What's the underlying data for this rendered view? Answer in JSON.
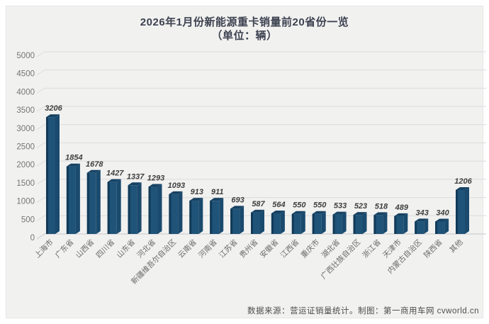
{
  "title": {
    "line1": "2026年1月份新能源重卡销量前20省份一览",
    "line2": "（单位：辆）"
  },
  "footer": {
    "source": "数据来源：营运证销量统计。制图：第一商用车网 cvworld.cn"
  },
  "colors": {
    "panel_bg": "#f1f1f0",
    "bar_front": "#1f5378",
    "bar_side": "#123a58",
    "bar_top": "#174263",
    "bar_right": "#1a4a6d",
    "gridline": "#dcdcdc",
    "baseline": "#c8c8c8",
    "title_text": "#3d4250",
    "ytick_text": "#757575",
    "category_text": "#6b6b6b",
    "value_text": "#3f3f3f",
    "footer_text": "#4d4d4d"
  },
  "chart_data": {
    "type": "bar",
    "style": "3d-column",
    "title": "2026年1月份新能源重卡销量前20省份一览",
    "subtitle": "（单位：辆）",
    "categories": [
      "上海市",
      "广东省",
      "山西省",
      "四川省",
      "山东省",
      "河北省",
      "新疆维吾尔自治区",
      "云南省",
      "河南省",
      "江苏省",
      "贵州省",
      "安徽省",
      "江西省",
      "重庆市",
      "湖北省",
      "广西壮族自治区",
      "浙江省",
      "天津市",
      "内蒙古自治区",
      "陕西省",
      "其他"
    ],
    "values": [
      3206,
      1854,
      1678,
      1427,
      1337,
      1293,
      1093,
      913,
      911,
      693,
      587,
      564,
      550,
      550,
      533,
      523,
      518,
      489,
      343,
      340,
      1206
    ],
    "ylim": [
      0,
      5000
    ],
    "yticks": [
      0,
      500,
      1000,
      1500,
      2000,
      2500,
      3000,
      3500,
      4000,
      4500,
      5000
    ],
    "grid": true,
    "data_labels": true,
    "legend": "none",
    "xlabel": "",
    "ylabel": ""
  }
}
